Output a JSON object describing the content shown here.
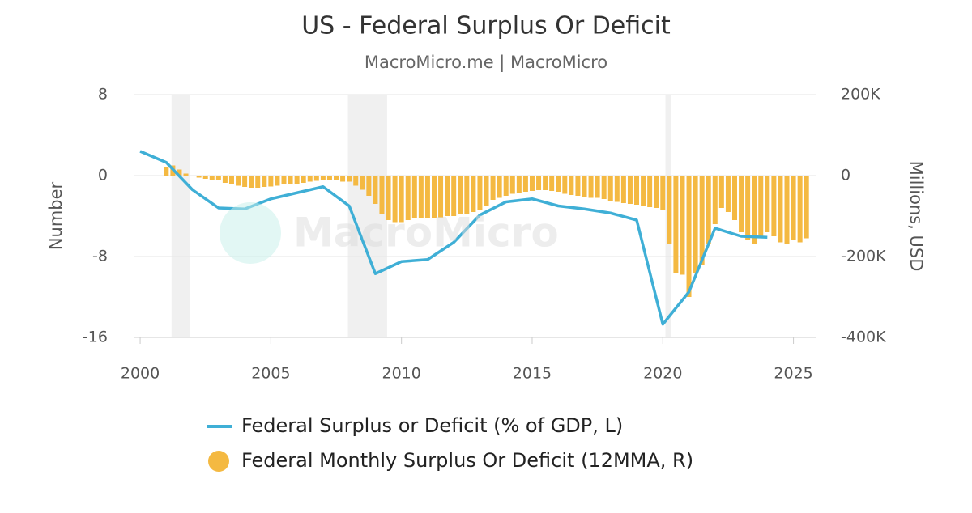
{
  "chart_data": {
    "type": "combo",
    "title": "US - Federal Surplus Or Deficit",
    "subtitle": "MacroMicro.me | MacroMicro",
    "watermark": "MacroMicro",
    "y_label": "Number",
    "y2_label": "Millions, USD",
    "xlim": [
      1999.75,
      2025.85
    ],
    "xticks": [
      2000,
      2005,
      2010,
      2015,
      2020,
      2025
    ],
    "ylim": [
      -16,
      8
    ],
    "yticks": [
      8,
      0,
      -8,
      -16
    ],
    "y2lim": [
      -400000,
      200000
    ],
    "y2ticks": [
      {
        "value": 200000,
        "label": "200K"
      },
      0,
      {
        "value": -200000,
        "label": "-200K"
      },
      {
        "value": -400000,
        "label": "-400K"
      }
    ],
    "grid": true,
    "shaded_regions": [
      [
        2001.2,
        2001.9
      ],
      [
        2007.95,
        2009.45
      ],
      [
        2020.1,
        2020.3
      ]
    ],
    "shade_color": "#f0f0f0",
    "series": [
      {
        "name": "Federal Surplus or Deficit (% of GDP, L)",
        "type": "line",
        "color": "#3fafd6",
        "axis": "y",
        "x": [
          2000,
          2001,
          2002,
          2003,
          2004,
          2005,
          2006,
          2007,
          2008,
          2009,
          2010,
          2011,
          2012,
          2013,
          2014,
          2015,
          2016,
          2017,
          2018,
          2019,
          2020,
          2021,
          2022,
          2023,
          2024
        ],
        "values": [
          2.4,
          1.3,
          -1.4,
          -3.2,
          -3.3,
          -2.3,
          -1.7,
          -1.1,
          -3.0,
          -9.7,
          -8.5,
          -8.3,
          -6.6,
          -3.9,
          -2.6,
          -2.3,
          -3.0,
          -3.3,
          -3.7,
          -4.4,
          -14.7,
          -11.5,
          -5.2,
          -6.0,
          -6.1
        ]
      },
      {
        "name": "Federal Monthly Surplus Or Deficit (12MMA, R)",
        "type": "bar",
        "color": "#f4b942",
        "axis": "y2",
        "x": [
          2001,
          2001.25,
          2001.5,
          2001.75,
          2002,
          2002.25,
          2002.5,
          2002.75,
          2003,
          2003.25,
          2003.5,
          2003.75,
          2004,
          2004.25,
          2004.5,
          2004.75,
          2005,
          2005.25,
          2005.5,
          2005.75,
          2006,
          2006.25,
          2006.5,
          2006.75,
          2007,
          2007.25,
          2007.5,
          2007.75,
          2008,
          2008.25,
          2008.5,
          2008.75,
          2009,
          2009.25,
          2009.5,
          2009.75,
          2010,
          2010.25,
          2010.5,
          2010.75,
          2011,
          2011.25,
          2011.5,
          2011.75,
          2012,
          2012.25,
          2012.5,
          2012.75,
          2013,
          2013.25,
          2013.5,
          2013.75,
          2014,
          2014.25,
          2014.5,
          2014.75,
          2015,
          2015.25,
          2015.5,
          2015.75,
          2016,
          2016.25,
          2016.5,
          2016.75,
          2017,
          2017.25,
          2017.5,
          2017.75,
          2018,
          2018.25,
          2018.5,
          2018.75,
          2019,
          2019.25,
          2019.5,
          2019.75,
          2020,
          2020.25,
          2020.5,
          2020.75,
          2021,
          2021.25,
          2021.5,
          2021.75,
          2022,
          2022.25,
          2022.5,
          2022.75,
          2023,
          2023.25,
          2023.5,
          2023.75,
          2024,
          2024.25,
          2024.5,
          2024.75,
          2025,
          2025.25,
          2025.5
        ],
        "values": [
          20000,
          25000,
          15000,
          5000,
          -2000,
          -5000,
          -8000,
          -10000,
          -12000,
          -18000,
          -22000,
          -25000,
          -28000,
          -30000,
          -30000,
          -28000,
          -27000,
          -25000,
          -22000,
          -20000,
          -20000,
          -18000,
          -15000,
          -13000,
          -12000,
          -10000,
          -12000,
          -15000,
          -15000,
          -25000,
          -35000,
          -50000,
          -70000,
          -95000,
          -110000,
          -115000,
          -115000,
          -110000,
          -105000,
          -105000,
          -105000,
          -105000,
          -105000,
          -100000,
          -100000,
          -95000,
          -95000,
          -90000,
          -85000,
          -75000,
          -60000,
          -55000,
          -50000,
          -45000,
          -42000,
          -40000,
          -38000,
          -36000,
          -36000,
          -38000,
          -40000,
          -45000,
          -48000,
          -50000,
          -52000,
          -55000,
          -55000,
          -58000,
          -62000,
          -65000,
          -68000,
          -70000,
          -72000,
          -75000,
          -78000,
          -80000,
          -85000,
          -170000,
          -240000,
          -245000,
          -300000,
          -240000,
          -220000,
          -170000,
          -120000,
          -80000,
          -90000,
          -110000,
          -140000,
          -160000,
          -170000,
          -150000,
          -140000,
          -150000,
          -165000,
          -170000,
          -160000,
          -165000,
          -155000
        ]
      }
    ]
  }
}
